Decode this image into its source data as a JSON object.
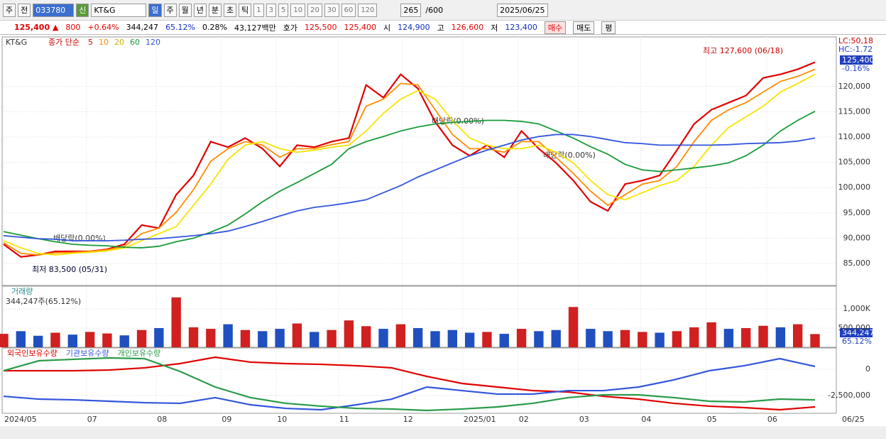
{
  "toolbar": {
    "tab1": "주",
    "tab2": "전",
    "code": "033780",
    "new": "신",
    "name": "KT&G",
    "periods": [
      "일",
      "주",
      "월",
      "년",
      "분",
      "초",
      "틱"
    ],
    "intervals": [
      "1",
      "3",
      "5",
      "10",
      "20",
      "30",
      "60",
      "120"
    ],
    "count": "265",
    "total": "/600",
    "date": "2025/06/25"
  },
  "quote": {
    "price": "125,400 ▲",
    "change": "800",
    "change_pct": "+0.64%",
    "volume": "344,247",
    "vol_ratio": "65.12%",
    "turnover": "0.28%",
    "amount": "43,127백만",
    "bid_label": "호가",
    "ask": "125,500",
    "bid": "125,400",
    "open_label": "시",
    "open": "124,900",
    "high_label": "고",
    "high": "126,600",
    "low_label": "저",
    "low": "123,400",
    "buy": "매수",
    "sell": "매도",
    "avg": "평"
  },
  "x_axis": {
    "ticks": [
      {
        "value": 0,
        "label": "2024/05"
      },
      {
        "value": 4.8,
        "label": "07"
      },
      {
        "value": 8.85,
        "label": "08"
      },
      {
        "value": 12.6,
        "label": "09"
      },
      {
        "value": 15.8,
        "label": "10"
      },
      {
        "value": 19.4,
        "label": "11"
      },
      {
        "value": 23.1,
        "label": "12"
      },
      {
        "value": 26.6,
        "label": "2025/01"
      },
      {
        "value": 29.8,
        "label": "02"
      },
      {
        "value": 33.3,
        "label": "03"
      },
      {
        "value": 36.9,
        "label": "04"
      },
      {
        "value": 40.7,
        "label": "05"
      },
      {
        "value": 44.2,
        "label": "06"
      }
    ],
    "xlim": [
      0,
      47
    ],
    "last": "06/25"
  },
  "chart_data": [
    {
      "type": "line",
      "title": "KT&G",
      "subtitle": "종가 단순",
      "xlim": [
        0,
        47
      ],
      "ylim": [
        80650,
        129800
      ],
      "yticks": [
        {
          "value": 85000,
          "label": "85,000"
        },
        {
          "value": 90000,
          "label": "90,000"
        },
        {
          "value": 95000,
          "label": "95,000"
        },
        {
          "value": 100000,
          "label": "100,000"
        },
        {
          "value": 105000,
          "label": "105,000"
        },
        {
          "value": 110000,
          "label": "110,000"
        },
        {
          "value": 115000,
          "label": "115,000"
        },
        {
          "value": 120000,
          "label": "120,000"
        }
      ],
      "grid": true,
      "series": [
        {
          "name": "5",
          "color": "#e00000",
          "values": [
            88800,
            86300,
            86700,
            87400,
            87400,
            87400,
            87800,
            88800,
            92600,
            92000,
            98600,
            102400,
            109100,
            108000,
            109800,
            107700,
            104200,
            108400,
            108000,
            109100,
            109800,
            120300,
            117800,
            122400,
            119600,
            113000,
            108400,
            106300,
            108400,
            106000,
            111200,
            107700,
            104900,
            101400,
            97200,
            95400,
            100700,
            101400,
            102400,
            107400,
            112600,
            115400,
            116800,
            118200,
            121700,
            122400,
            123400,
            124800
          ]
        },
        {
          "name": "10",
          "color": "#ff8c00",
          "values": [
            89100,
            87000,
            86700,
            87100,
            87200,
            87400,
            87700,
            88400,
            90900,
            92000,
            95100,
            99600,
            105200,
            107700,
            109100,
            108400,
            106000,
            107700,
            107700,
            108500,
            109100,
            116100,
            117500,
            120600,
            120300,
            115400,
            110500,
            107700,
            107700,
            107000,
            109100,
            109100,
            106000,
            102800,
            99300,
            96500,
            98600,
            100700,
            101400,
            104200,
            109100,
            113300,
            115400,
            116800,
            118900,
            121000,
            122000,
            123400
          ]
        },
        {
          "name": "20",
          "color": "#f5e400",
          "values": [
            89500,
            88100,
            87000,
            86700,
            87000,
            87200,
            87500,
            88100,
            89500,
            90900,
            92300,
            96500,
            100700,
            105600,
            108400,
            109100,
            107700,
            107000,
            107400,
            108000,
            108400,
            111200,
            114700,
            117500,
            119200,
            117500,
            113300,
            109800,
            108400,
            107700,
            107700,
            108400,
            107000,
            104900,
            101400,
            98600,
            97600,
            99000,
            100400,
            101400,
            104200,
            108400,
            111900,
            114000,
            116100,
            118900,
            120600,
            122400
          ]
        },
        {
          "name": "60",
          "color": "#1a9a3a",
          "values": [
            91300,
            90600,
            89900,
            89300,
            88800,
            88600,
            88500,
            88200,
            88100,
            88400,
            89300,
            90000,
            91200,
            92600,
            94800,
            97200,
            99300,
            101000,
            102800,
            104600,
            107700,
            109100,
            110100,
            111200,
            112000,
            112600,
            112900,
            113100,
            113300,
            113300,
            113100,
            112600,
            111200,
            109800,
            108100,
            106600,
            104600,
            103500,
            103200,
            103500,
            103900,
            104300,
            104900,
            106300,
            108400,
            111200,
            113300,
            115100
          ]
        },
        {
          "name": "120",
          "color": "#3355dd",
          "values": [
            90500,
            90200,
            89900,
            89800,
            89500,
            89500,
            89500,
            89600,
            89800,
            89900,
            90200,
            90500,
            90900,
            91400,
            92300,
            93300,
            94400,
            95400,
            96100,
            96500,
            97000,
            97600,
            99000,
            100400,
            102100,
            103500,
            104900,
            106300,
            107400,
            108400,
            109400,
            110100,
            110500,
            110500,
            110100,
            109500,
            108900,
            108700,
            108400,
            108400,
            108400,
            108400,
            108500,
            108700,
            108800,
            108900,
            109200,
            109800
          ]
        }
      ],
      "annotations": [
        "최고 127,600 (06/18)",
        "최저 83,500 (05/31)",
        "배당락(0.00%)",
        "배당락(0.00%)",
        "배당락(0.00%)"
      ],
      "right_labels": {
        "lc": "LC:50,18",
        "hc": "HC:-1.72",
        "last": "125,400",
        "pct": "-0.16%"
      }
    },
    {
      "type": "bar",
      "title": "거래량",
      "subtitle": "344,247주(65.12%)",
      "xlim": [
        0,
        47
      ],
      "ylim": [
        0,
        1555000
      ],
      "yticks": [
        {
          "value": 1000000,
          "label": "1,000K"
        },
        {
          "value": 500000,
          "label": "500,000"
        }
      ],
      "values": [
        350000,
        420000,
        300000,
        380000,
        330000,
        400000,
        360000,
        310000,
        450000,
        500000,
        1300000,
        520000,
        480000,
        600000,
        450000,
        420000,
        480000,
        620000,
        400000,
        450000,
        700000,
        550000,
        480000,
        600000,
        500000,
        420000,
        450000,
        380000,
        400000,
        350000,
        480000,
        420000,
        450000,
        1050000,
        480000,
        420000,
        450000,
        400000,
        380000,
        420000,
        520000,
        650000,
        480000,
        500000,
        560000,
        520000,
        600000,
        344247
      ],
      "colors": [
        "#d02020",
        "#2050c0",
        "#2050c0",
        "#d02020",
        "#2050c0",
        "#d02020",
        "#d02020",
        "#2050c0",
        "#d02020",
        "#2050c0",
        "#d02020",
        "#d02020",
        "#d02020",
        "#2050c0",
        "#d02020",
        "#2050c0",
        "#2050c0",
        "#d02020",
        "#2050c0",
        "#d02020",
        "#d02020",
        "#d02020",
        "#2050c0",
        "#d02020",
        "#2050c0",
        "#2050c0",
        "#2050c0",
        "#2050c0",
        "#d02020",
        "#2050c0",
        "#d02020",
        "#2050c0",
        "#2050c0",
        "#d02020",
        "#2050c0",
        "#2050c0",
        "#d02020",
        "#d02020",
        "#2050c0",
        "#d02020",
        "#d02020",
        "#d02020",
        "#2050c0",
        "#d02020",
        "#d02020",
        "#2050c0",
        "#d02020",
        "#d02020"
      ],
      "last_label": "344,247",
      "last_ratio": "65.12%"
    },
    {
      "type": "line",
      "xlim": [
        0,
        23
      ],
      "ylim": [
        -4189000,
        1892000
      ],
      "yticks": [
        0,
        {
          "value": -2500000,
          "label": "-2,500,000"
        }
      ],
      "series": [
        {
          "name": "외국인보유수량",
          "color": "#e00000",
          "values": [
            -140000,
            -140000,
            -140000,
            -70000,
            140000,
            540000,
            1150000,
            680000,
            540000,
            470000,
            340000,
            140000,
            -680000,
            -1350000,
            -1690000,
            -2030000,
            -2160000,
            -2570000,
            -2840000,
            -3240000,
            -3510000,
            -3650000,
            -3850000,
            -3580000
          ]
        },
        {
          "name": "기관보유수량",
          "color": "#3355dd",
          "values": [
            -2570000,
            -2840000,
            -2910000,
            -3040000,
            -3180000,
            -3240000,
            -2700000,
            -3380000,
            -3720000,
            -3850000,
            -3380000,
            -2840000,
            -1690000,
            -2030000,
            -2360000,
            -2360000,
            -2030000,
            -2030000,
            -1690000,
            -1010000,
            -140000,
            340000,
            1010000,
            270000
          ]
        },
        {
          "name": "개인보유수량",
          "color": "#2a9a4a",
          "values": [
            -140000,
            810000,
            950000,
            1080000,
            1010000,
            -200000,
            -1690000,
            -2700000,
            -3240000,
            -3510000,
            -3720000,
            -3780000,
            -3920000,
            -3780000,
            -3580000,
            -3240000,
            -2700000,
            -2430000,
            -2430000,
            -2700000,
            -3040000,
            -3110000,
            -2840000,
            -2910000
          ]
        }
      ]
    }
  ]
}
